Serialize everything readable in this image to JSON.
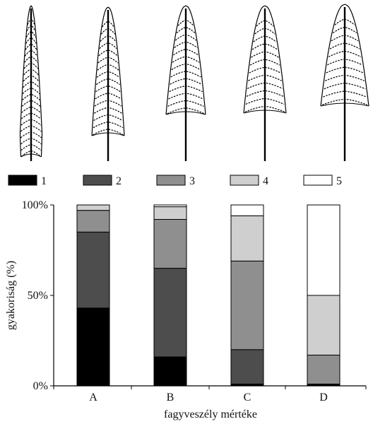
{
  "chart_data": {
    "type": "bar",
    "stacked": true,
    "categories": [
      "A",
      "B",
      "C",
      "D"
    ],
    "series": [
      {
        "name": "1",
        "color": "#000000",
        "values": [
          43,
          16,
          1,
          1
        ]
      },
      {
        "name": "2",
        "color": "#4d4d4d",
        "values": [
          42,
          49,
          19,
          0
        ]
      },
      {
        "name": "3",
        "color": "#8f8f8f",
        "values": [
          12,
          27,
          49,
          16
        ]
      },
      {
        "name": "4",
        "color": "#cfcfcf",
        "values": [
          3,
          7,
          25,
          33
        ]
      },
      {
        "name": "5",
        "color": "#ffffff",
        "values": [
          0,
          1,
          6,
          50
        ]
      }
    ],
    "ylim": [
      0,
      100
    ],
    "yticks": [
      "0%",
      "50%",
      "100%"
    ],
    "xlabel": "fagyveszély mértéke",
    "ylabel": "gyakoriság (%)",
    "legend_position": "top",
    "grid": false
  },
  "leaf_illustrations": [
    "leaf-shape-1",
    "leaf-shape-2",
    "leaf-shape-3",
    "leaf-shape-4",
    "leaf-shape-5"
  ]
}
